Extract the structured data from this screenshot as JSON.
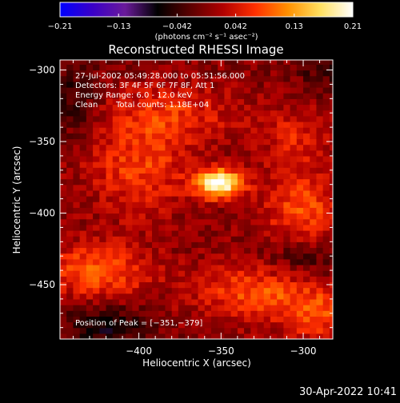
{
  "chart_data": {
    "type": "heatmap",
    "title": "Reconstructed RHESSI Image",
    "xlabel": "Heliocentric X (arcsec)",
    "ylabel": "Heliocentric Y (arcsec)",
    "xlim": [
      -448,
      -282
    ],
    "ylim": [
      -488,
      -293
    ],
    "x_ticks": [
      {
        "value": -400,
        "label": "−400"
      },
      {
        "value": -350,
        "label": "−350"
      },
      {
        "value": -300,
        "label": "−300"
      }
    ],
    "y_ticks": [
      {
        "value": -300,
        "label": "−300"
      },
      {
        "value": -350,
        "label": "−350"
      },
      {
        "value": -400,
        "label": "−400"
      },
      {
        "value": -450,
        "label": "−450"
      }
    ],
    "colorbar": {
      "range": [
        -0.21,
        0.21
      ],
      "tick_labels": [
        "−0.21",
        "−0.13",
        "−0.042",
        "0.042",
        "0.13",
        "0.21"
      ],
      "label": "(photons cm⁻² s⁻¹ asec⁻²)",
      "colormap_stops": [
        "#0000ff",
        "#3a00c8",
        "#6a1a9a",
        "#000000",
        "#5a0000",
        "#b00000",
        "#ff3000",
        "#ff9000",
        "#ffe060",
        "#ffffff"
      ]
    },
    "peak": {
      "x": -351,
      "y": -379,
      "value": 0.21
    },
    "sources": [
      {
        "x": -351,
        "y": -379,
        "sx": 10,
        "sy": 7,
        "value": 0.21
      },
      {
        "x": -425,
        "y": -440,
        "sx": 22,
        "sy": 14,
        "value": 0.09
      },
      {
        "x": -300,
        "y": -400,
        "sx": 18,
        "sy": 22,
        "value": 0.08
      },
      {
        "x": -400,
        "y": -368,
        "sx": 22,
        "sy": 22,
        "value": 0.07
      },
      {
        "x": -330,
        "y": -455,
        "sx": 26,
        "sy": 14,
        "value": 0.08
      },
      {
        "x": -380,
        "y": -330,
        "sx": 28,
        "sy": 14,
        "value": 0.06
      },
      {
        "x": -305,
        "y": -348,
        "sx": 14,
        "sy": 14,
        "value": 0.05
      },
      {
        "x": -290,
        "y": -470,
        "sx": 16,
        "sy": 14,
        "value": 0.07
      }
    ],
    "negative_regions": [
      {
        "x": -420,
        "y": -478,
        "sx": 18,
        "sy": 10,
        "value": -0.07
      },
      {
        "x": -438,
        "y": -320,
        "sx": 10,
        "sy": 18,
        "value": -0.05
      },
      {
        "x": -300,
        "y": -430,
        "sx": 18,
        "sy": 12,
        "value": -0.06
      },
      {
        "x": -285,
        "y": -300,
        "sx": 14,
        "sy": 10,
        "value": -0.04
      }
    ]
  },
  "annotations": {
    "time_range": "27-Jul-2002 05:49:28.000 to 05:51:56.000",
    "detectors": "Detectors: 3F 4F 5F 6F 7F 8F, Att 1",
    "energy_range": "Energy Range: 6.0 - 12.0 keV",
    "method": "Clean",
    "total_counts": "Total counts: 1.18E+04",
    "peak_text": "Position of Peak = [−351,−379]"
  },
  "footer_date": "30-Apr-2022 10:41"
}
